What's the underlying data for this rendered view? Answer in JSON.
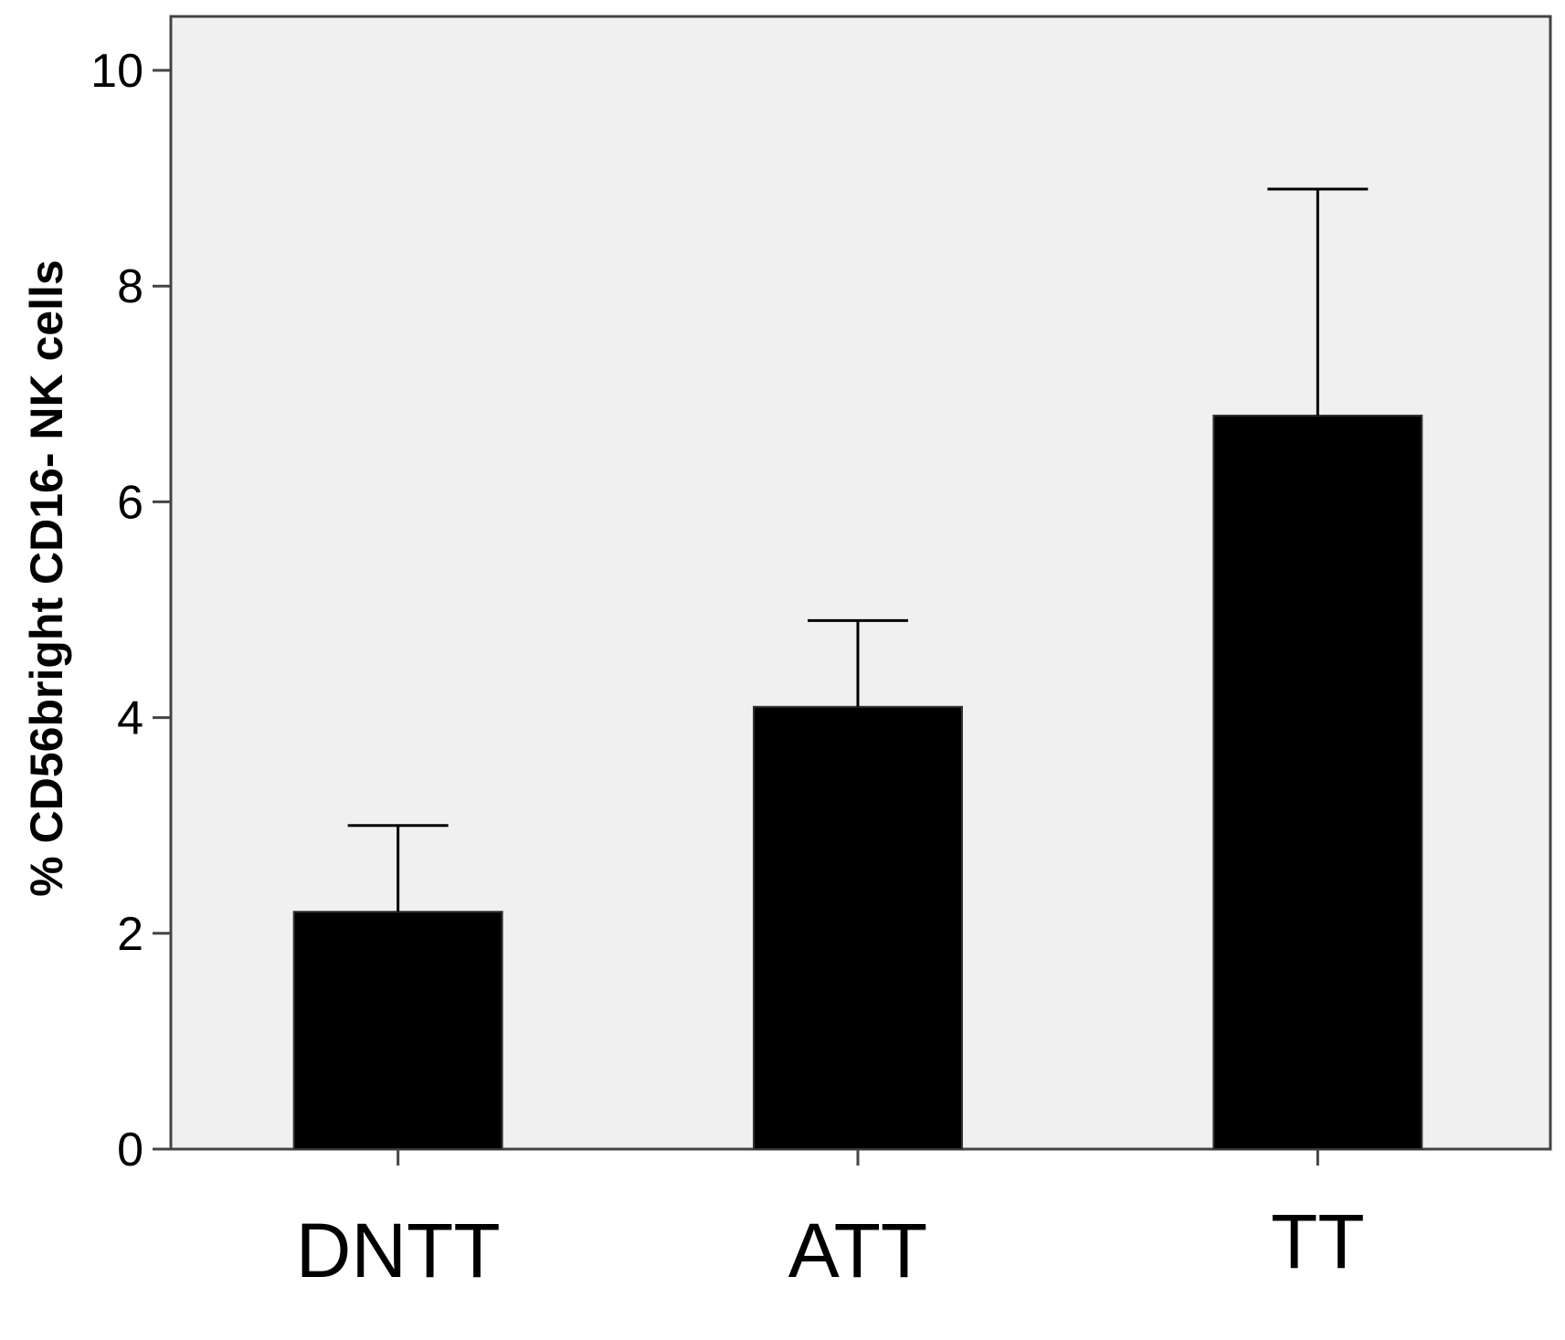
{
  "chart_data": {
    "type": "bar",
    "categories": [
      "DNTT",
      "ATT",
      "TT"
    ],
    "values": [
      2.2,
      4.1,
      6.8
    ],
    "error_upper": [
      3.0,
      4.9,
      8.9
    ],
    "title": "",
    "xlabel": "",
    "ylabel": "% CD56bright CD16- NK cells",
    "ylim": [
      0,
      10.5
    ],
    "yticks": [
      0,
      2,
      4,
      6,
      8,
      10
    ],
    "ytick_labels": [
      "0",
      "2",
      "4",
      "6",
      "8",
      "10"
    ],
    "grid": false,
    "legend": "none",
    "colors": {
      "bar": "#000000",
      "plot_background": "#f0f0f0",
      "frame": "#444444",
      "error_bar": "#000000"
    }
  }
}
